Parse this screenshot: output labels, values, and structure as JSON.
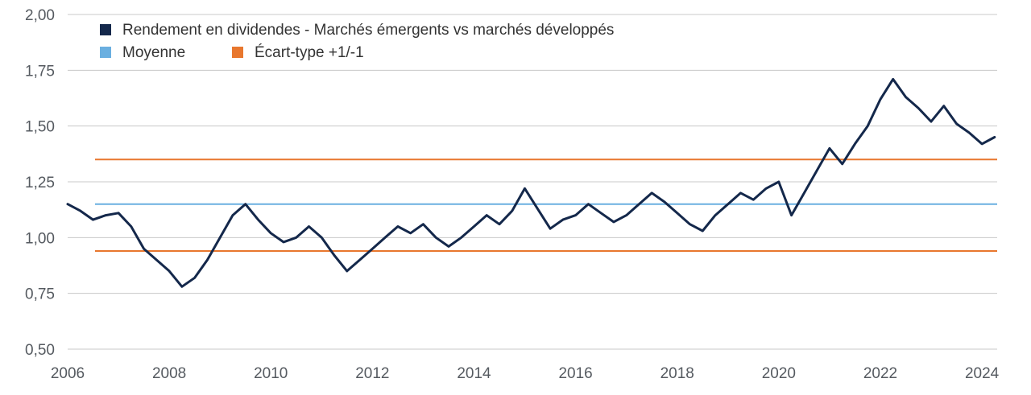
{
  "chart_data": {
    "type": "line",
    "title": "",
    "xlabel": "",
    "ylabel": "",
    "xlim": [
      2006,
      2024.3
    ],
    "ylim": [
      0.5,
      2.0
    ],
    "y_ticks": [
      "0,50",
      "0,75",
      "1,00",
      "1,25",
      "1,50",
      "1,75",
      "2,00"
    ],
    "y_tick_values": [
      0.5,
      0.75,
      1.0,
      1.25,
      1.5,
      1.75,
      2.0
    ],
    "x_ticks": [
      "2006",
      "2008",
      "2010",
      "2012",
      "2014",
      "2016",
      "2018",
      "2020",
      "2022",
      "2024"
    ],
    "x_tick_values": [
      2006,
      2008,
      2010,
      2012,
      2014,
      2016,
      2018,
      2020,
      2022,
      2024
    ],
    "grid": "horizontal",
    "legend_position": "top-left",
    "legend": [
      {
        "label": "Rendement en dividendes - Marchés émergents vs marchés développés",
        "color": "#14284b"
      },
      {
        "label": "Moyenne",
        "color": "#6aafe0"
      },
      {
        "label": "Écart-type +1/-1",
        "color": "#e8772e"
      }
    ],
    "series": [
      {
        "name": "Rendement en dividendes - Marchés émergents vs marchés développés",
        "color": "#14284b",
        "x": [
          2006.0,
          2006.25,
          2006.5,
          2006.75,
          2007.0,
          2007.25,
          2007.5,
          2007.75,
          2008.0,
          2008.25,
          2008.5,
          2008.75,
          2009.0,
          2009.25,
          2009.5,
          2009.75,
          2010.0,
          2010.25,
          2010.5,
          2010.75,
          2011.0,
          2011.25,
          2011.5,
          2011.75,
          2012.0,
          2012.25,
          2012.5,
          2012.75,
          2013.0,
          2013.25,
          2013.5,
          2013.75,
          2014.0,
          2014.25,
          2014.5,
          2014.75,
          2015.0,
          2015.25,
          2015.5,
          2015.75,
          2016.0,
          2016.25,
          2016.5,
          2016.75,
          2017.0,
          2017.25,
          2017.5,
          2017.75,
          2018.0,
          2018.25,
          2018.5,
          2018.75,
          2019.0,
          2019.25,
          2019.5,
          2019.75,
          2020.0,
          2020.25,
          2020.5,
          2020.75,
          2021.0,
          2021.25,
          2021.5,
          2021.75,
          2022.0,
          2022.25,
          2022.5,
          2022.75,
          2023.0,
          2023.25,
          2023.5,
          2023.75,
          2024.0,
          2024.25
        ],
        "values": [
          1.15,
          1.12,
          1.08,
          1.1,
          1.11,
          1.05,
          0.95,
          0.9,
          0.85,
          0.78,
          0.82,
          0.9,
          1.0,
          1.1,
          1.15,
          1.08,
          1.02,
          0.98,
          1.0,
          1.05,
          1.0,
          0.92,
          0.85,
          0.9,
          0.95,
          1.0,
          1.05,
          1.02,
          1.06,
          1.0,
          0.96,
          1.0,
          1.05,
          1.1,
          1.06,
          1.12,
          1.22,
          1.13,
          1.04,
          1.08,
          1.1,
          1.15,
          1.11,
          1.07,
          1.1,
          1.15,
          1.2,
          1.16,
          1.11,
          1.06,
          1.03,
          1.1,
          1.15,
          1.2,
          1.17,
          1.22,
          1.25,
          1.1,
          1.2,
          1.3,
          1.4,
          1.33,
          1.42,
          1.5,
          1.62,
          1.71,
          1.63,
          1.58,
          1.52,
          1.59,
          1.51,
          1.47,
          1.42,
          1.45
        ]
      }
    ],
    "reference_lines": [
      {
        "name": "Moyenne",
        "value": 1.15,
        "color": "#6aafe0"
      },
      {
        "name": "Écart-type +1/-1",
        "value": 1.35,
        "color": "#e8772e"
      },
      {
        "name": "Écart-type +1/-1",
        "value": 0.94,
        "color": "#e8772e"
      }
    ]
  }
}
